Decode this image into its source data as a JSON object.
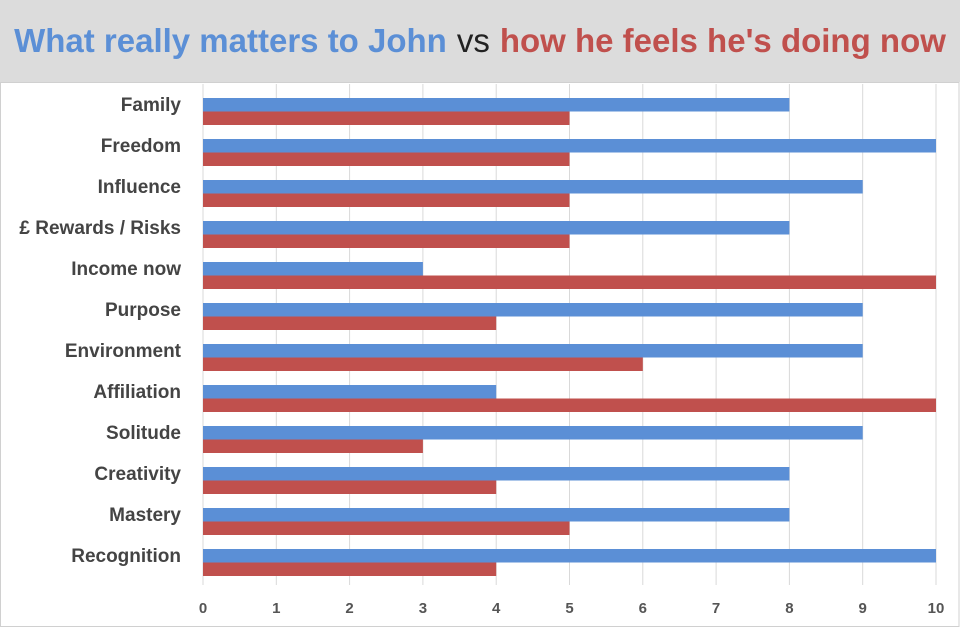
{
  "title": {
    "part1": "What really matters to John",
    "vs": "vs",
    "part2": "how he feels he's doing now"
  },
  "colors": {
    "series1": "#5b8fd6",
    "series2": "#c0504d",
    "header_bg": "#dcdcdc",
    "grid": "#d9d9d9"
  },
  "chart_data": {
    "type": "bar",
    "orientation": "horizontal",
    "categories": [
      "Family",
      "Freedom",
      "Influence",
      "£ Rewards / Risks",
      "Income now",
      "Purpose",
      "Environment",
      "Affiliation",
      "Solitude",
      "Creativity",
      "Mastery",
      "Recognition"
    ],
    "series": [
      {
        "values": [
          8,
          10,
          9,
          8,
          3,
          9,
          9,
          4,
          9,
          8,
          8,
          10
        ]
      },
      {
        "values": [
          5,
          5,
          5,
          5,
          10,
          4,
          6,
          10,
          3,
          4,
          5,
          4
        ]
      }
    ],
    "xlim": [
      0,
      10
    ],
    "xticks": [
      "0",
      "1",
      "2",
      "3",
      "4",
      "5",
      "6",
      "7",
      "8",
      "9",
      "10"
    ],
    "grid": true,
    "legend": "none"
  }
}
